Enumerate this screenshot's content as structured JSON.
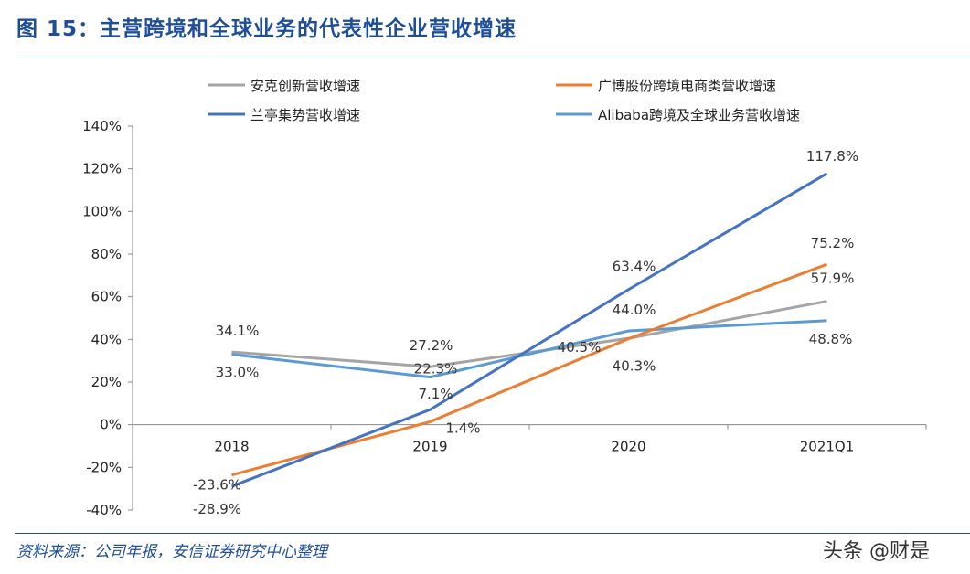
{
  "title": "图 15：主营跨境和全球业务的代表性企业营收增速",
  "source": "资料来源：公司年报，安信证券研究中心整理",
  "watermark": "头条 @财是",
  "chart_data": {
    "type": "line",
    "categories": [
      "2018",
      "2019",
      "2020",
      "2021Q1"
    ],
    "ylim": [
      -40,
      140
    ],
    "yticks": [
      "-40%",
      "-20%",
      "0%",
      "20%",
      "40%",
      "60%",
      "80%",
      "100%",
      "120%",
      "140%"
    ],
    "legend_position": "top",
    "grid": false,
    "series": [
      {
        "name": "安克创新营收增速",
        "color": "#a5a5a5",
        "values": [
          34.1,
          27.2,
          40.5,
          57.9
        ],
        "labels": [
          "34.1%",
          "27.2%",
          "40.5%",
          "57.9%"
        ]
      },
      {
        "name": "广博股份跨境电商类营收增速",
        "color": "#ed7d31",
        "values": [
          -23.6,
          1.4,
          40.3,
          75.2
        ],
        "labels": [
          "-23.6%",
          "1.4%",
          "40.3%",
          "75.2%"
        ]
      },
      {
        "name": "兰亭集势营收增速",
        "color": "#4472c4",
        "values": [
          -28.9,
          7.1,
          63.4,
          117.8
        ],
        "labels": [
          "-28.9%",
          "7.1%",
          "63.4%",
          "117.8%"
        ]
      },
      {
        "name": "Alibaba跨境及全球业务营收增速",
        "color": "#5b9bd5",
        "values": [
          33.0,
          22.3,
          44.0,
          48.8
        ],
        "labels": [
          "33.0%",
          "22.3%",
          "44.0%",
          "48.8%"
        ]
      }
    ]
  }
}
